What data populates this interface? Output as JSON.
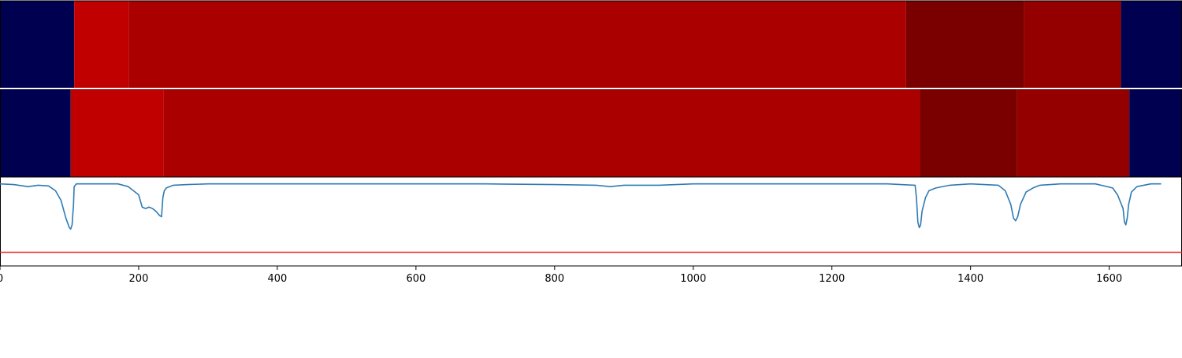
{
  "chart_data": {
    "type": "heatmap",
    "xlim": [
      0,
      1705
    ],
    "x_ticks": [
      0,
      200,
      400,
      600,
      800,
      1000,
      1200,
      1400,
      1600
    ],
    "grid": false,
    "legend": "none",
    "heatmap_rows": [
      {
        "segments": [
          {
            "x0": 0,
            "x1": 107,
            "color": "#000050"
          },
          {
            "x0": 107,
            "x1": 186,
            "color": "#c00000"
          },
          {
            "x0": 186,
            "x1": 1307,
            "color": "#aa0000"
          },
          {
            "x0": 1307,
            "x1": 1477,
            "color": "#7a0000"
          },
          {
            "x0": 1477,
            "x1": 1617,
            "color": "#940000"
          },
          {
            "x0": 1617,
            "x1": 1705,
            "color": "#000050"
          }
        ]
      },
      {
        "segments": [
          {
            "x0": 0,
            "x1": 102,
            "color": "#000050"
          },
          {
            "x0": 102,
            "x1": 236,
            "color": "#c00000"
          },
          {
            "x0": 236,
            "x1": 1327,
            "color": "#aa0000"
          },
          {
            "x0": 1327,
            "x1": 1467,
            "color": "#7a0000"
          },
          {
            "x0": 1467,
            "x1": 1629,
            "color": "#940000"
          },
          {
            "x0": 1629,
            "x1": 1705,
            "color": "#000050"
          }
        ]
      }
    ],
    "line_panel": {
      "ylim": [
        -0.6,
        0.05
      ],
      "threshold": -0.5,
      "threshold_color": "#e8201c",
      "line_color": "#2f7bb5",
      "series": [
        {
          "x": [
            0,
            20,
            40,
            55,
            70,
            80,
            88,
            95,
            100,
            102,
            104,
            106,
            107,
            110,
            115,
            130,
            150,
            170,
            185,
            200,
            205,
            210,
            215,
            220,
            225,
            230,
            233,
            235,
            237,
            240,
            250,
            270,
            300,
            400,
            500,
            600,
            700,
            800,
            860,
            880,
            900,
            950,
            1000,
            1050,
            1100,
            1200,
            1280,
            1320,
            1322,
            1324,
            1326,
            1328,
            1330,
            1335,
            1340,
            1350,
            1370,
            1400,
            1440,
            1450,
            1458,
            1462,
            1465,
            1468,
            1472,
            1480,
            1490,
            1500,
            1530,
            1580,
            1605,
            1612,
            1620,
            1622,
            1624,
            1626,
            1628,
            1632,
            1640,
            1660,
            1675
          ],
          "y": [
            0,
            -0.005,
            -0.02,
            -0.01,
            -0.015,
            -0.05,
            -0.12,
            -0.25,
            -0.32,
            -0.33,
            -0.3,
            -0.15,
            -0.02,
            0,
            0,
            0,
            0,
            0,
            -0.02,
            -0.08,
            -0.17,
            -0.18,
            -0.17,
            -0.18,
            -0.2,
            -0.23,
            -0.24,
            -0.1,
            -0.05,
            -0.03,
            -0.01,
            -0.005,
            0,
            0,
            0,
            0,
            0,
            -0.005,
            -0.01,
            -0.02,
            -0.01,
            -0.01,
            0,
            0,
            0,
            0,
            0,
            -0.01,
            -0.1,
            -0.28,
            -0.32,
            -0.3,
            -0.2,
            -0.1,
            -0.05,
            -0.03,
            -0.01,
            0,
            -0.01,
            -0.05,
            -0.15,
            -0.25,
            -0.27,
            -0.24,
            -0.15,
            -0.06,
            -0.03,
            -0.01,
            0,
            0,
            -0.03,
            -0.08,
            -0.18,
            -0.28,
            -0.3,
            -0.25,
            -0.15,
            -0.06,
            -0.02,
            0,
            0
          ]
        }
      ]
    }
  }
}
